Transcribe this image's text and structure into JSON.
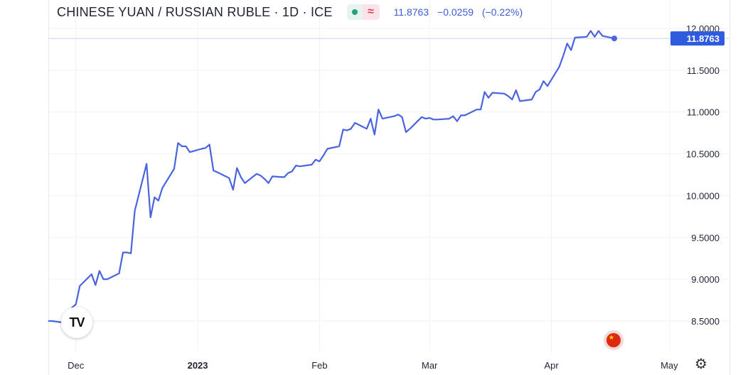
{
  "header": {
    "title": "CHINESE YUAN / RUSSIAN RUBLE · 1D · ICE",
    "last": "11.8763",
    "change": "−0.0259",
    "change_pct": "(−0.22%)"
  },
  "icons": {
    "logo": "tradingview-logo-icon",
    "flag": "china-flag-icon",
    "settings": "gear-icon",
    "badge_market": "green-dot-icon",
    "badge_symbol": "approx-icon"
  },
  "colors": {
    "line": "#4a64e0",
    "price_label_bg": "#2f5bde",
    "grid": "#f0f2f6"
  },
  "chart_data": {
    "type": "line",
    "title": "CHINESE YUAN / RUSSIAN RUBLE · 1D · ICE",
    "xlabel": "",
    "ylabel": "",
    "ylim": [
      8.3,
      12.05
    ],
    "grid": true,
    "y_ticks": [
      "12.0000",
      "11.5000",
      "11.0000",
      "10.5000",
      "10.0000",
      "9.5000",
      "9.0000",
      "8.5000"
    ],
    "x_ticks": [
      {
        "label": "Dec",
        "date": "2022-12-01",
        "bold": false
      },
      {
        "label": "2023",
        "date": "2023-01-01",
        "bold": true
      },
      {
        "label": "Feb",
        "date": "2023-02-01",
        "bold": false
      },
      {
        "label": "Mar",
        "date": "2023-03-01",
        "bold": false
      },
      {
        "label": "Apr",
        "date": "2023-04-01",
        "bold": false
      },
      {
        "label": "May",
        "date": "2023-05-01",
        "bold": false
      }
    ],
    "last_value_label": "11.8763",
    "series": [
      {
        "x": [
          "2022-11-24",
          "2022-11-25",
          "2022-11-28",
          "2022-11-29",
          "2022-11-30",
          "2022-12-01",
          "2022-12-02",
          "2022-12-05",
          "2022-12-06",
          "2022-12-07",
          "2022-12-08",
          "2022-12-09",
          "2022-12-12",
          "2022-12-13",
          "2022-12-14",
          "2022-12-15",
          "2022-12-16",
          "2022-12-19",
          "2022-12-20",
          "2022-12-21",
          "2022-12-22",
          "2022-12-23",
          "2022-12-26",
          "2022-12-27",
          "2022-12-28",
          "2022-12-29",
          "2022-12-30",
          "2023-01-02",
          "2023-01-03",
          "2023-01-04",
          "2023-01-05",
          "2023-01-06",
          "2023-01-09",
          "2023-01-10",
          "2023-01-11",
          "2023-01-12",
          "2023-01-13",
          "2023-01-16",
          "2023-01-17",
          "2023-01-18",
          "2023-01-19",
          "2023-01-20",
          "2023-01-23",
          "2023-01-24",
          "2023-01-25",
          "2023-01-26",
          "2023-01-27",
          "2023-01-30",
          "2023-01-31",
          "2023-02-01",
          "2023-02-02",
          "2023-02-03",
          "2023-02-06",
          "2023-02-07",
          "2023-02-08",
          "2023-02-09",
          "2023-02-10",
          "2023-02-13",
          "2023-02-14",
          "2023-02-15",
          "2023-02-16",
          "2023-02-17",
          "2023-02-20",
          "2023-02-21",
          "2023-02-22",
          "2023-02-23",
          "2023-02-24",
          "2023-02-27",
          "2023-02-28",
          "2023-03-01",
          "2023-03-02",
          "2023-03-03",
          "2023-03-06",
          "2023-03-07",
          "2023-03-08",
          "2023-03-09",
          "2023-03-10",
          "2023-03-13",
          "2023-03-14",
          "2023-03-15",
          "2023-03-16",
          "2023-03-17",
          "2023-03-20",
          "2023-03-21",
          "2023-03-22",
          "2023-03-23",
          "2023-03-24",
          "2023-03-27",
          "2023-03-28",
          "2023-03-29",
          "2023-03-30",
          "2023-03-31",
          "2023-04-03",
          "2023-04-04",
          "2023-04-05",
          "2023-04-06",
          "2023-04-07",
          "2023-04-10",
          "2023-04-11",
          "2023-04-12",
          "2023-04-13",
          "2023-04-14",
          "2023-04-17"
        ],
        "values": [
          8.5,
          8.5,
          8.48,
          8.55,
          8.66,
          8.7,
          8.92,
          9.06,
          8.93,
          9.1,
          9.0,
          9.0,
          9.07,
          9.32,
          9.32,
          9.31,
          9.82,
          10.38,
          9.74,
          9.98,
          9.94,
          10.09,
          10.32,
          10.63,
          10.59,
          10.59,
          10.52,
          10.56,
          10.57,
          10.61,
          10.3,
          10.28,
          10.21,
          10.07,
          10.33,
          10.22,
          10.15,
          10.26,
          10.24,
          10.2,
          10.15,
          10.23,
          10.22,
          10.27,
          10.29,
          10.36,
          10.35,
          10.37,
          10.43,
          10.41,
          10.48,
          10.56,
          10.59,
          10.79,
          10.78,
          10.8,
          10.87,
          10.8,
          10.92,
          10.73,
          11.03,
          10.92,
          10.95,
          10.97,
          10.94,
          10.76,
          10.8,
          10.94,
          10.92,
          10.93,
          10.91,
          10.91,
          10.92,
          10.95,
          10.89,
          10.96,
          10.96,
          11.03,
          11.03,
          11.24,
          11.17,
          11.23,
          11.22,
          11.19,
          11.15,
          11.26,
          11.13,
          11.15,
          11.24,
          11.27,
          11.37,
          11.31,
          11.54,
          11.67,
          11.82,
          11.74,
          11.89,
          11.9,
          11.97,
          11.9,
          11.97,
          11.91,
          11.88
        ]
      }
    ]
  }
}
